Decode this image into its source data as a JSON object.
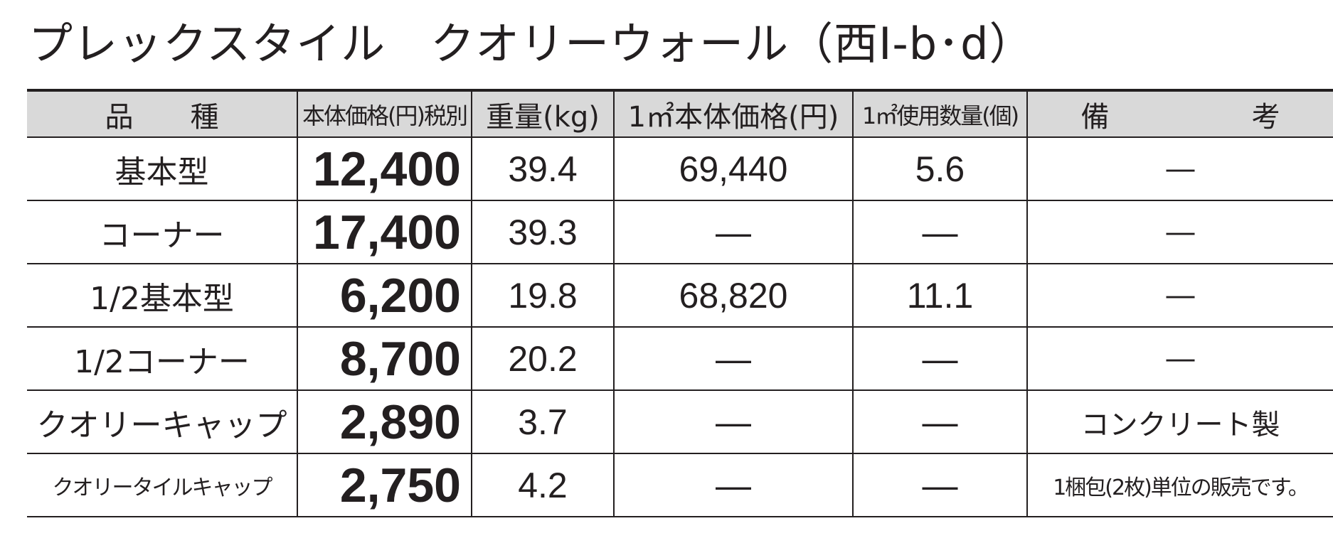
{
  "title": "プレックスタイル　クオリーウォール（西Ⅰ-b･d）",
  "table": {
    "header": [
      "品　　種",
      "本体価格(円)税別",
      "重量(kg)",
      "1㎡本体価格(円)",
      "1㎡使用数量(個)",
      "備　　　　　考"
    ],
    "rows": [
      [
        "基本型",
        "12,400",
        "39.4",
        "69,440",
        "5.6",
        "―"
      ],
      [
        "コーナー",
        "17,400",
        "39.3",
        "―",
        "―",
        "―"
      ],
      [
        "1/2基本型",
        "6,200",
        "19.8",
        "68,820",
        "11.1",
        "―"
      ],
      [
        "1/2コーナー",
        "8,700",
        "20.2",
        "―",
        "―",
        "―"
      ],
      [
        "クオリーキャップ",
        "2,890",
        "3.7",
        "―",
        "―",
        "コンクリート製"
      ],
      [
        "クオリータイルキャップ",
        "2,750",
        "4.2",
        "―",
        "―",
        "1梱包(2枚)単位の販売です。"
      ]
    ]
  }
}
